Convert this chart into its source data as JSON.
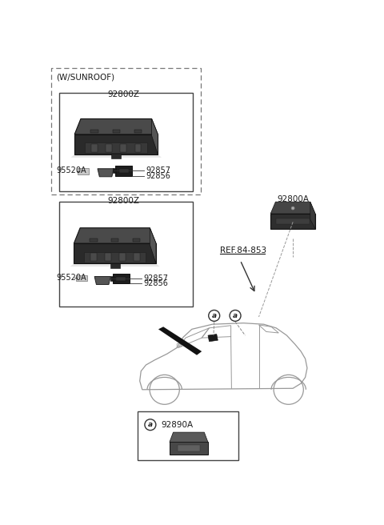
{
  "bg_color": "#ffffff",
  "fig_width": 4.8,
  "fig_height": 6.56,
  "dpi": 100,
  "parts": {
    "sunroof_label": "(W/SUNROOF)",
    "part_92800Z_1": "92800Z",
    "part_92800Z_2": "92800Z",
    "part_92800A": "92800A",
    "part_92857_1": "92857",
    "part_92856_1": "92856",
    "part_95520A_1": "95520A",
    "part_92857_2": "92857",
    "part_92856_2": "92856",
    "part_95520A_2": "95520A",
    "part_92890A": "92890A",
    "ref_label": "REF.84-853"
  },
  "colors": {
    "box_border": "#444444",
    "dashed_border": "#777777",
    "text": "#1a1a1a",
    "car_outline": "#999999",
    "line": "#333333",
    "lamp_dark": "#2a2a2a",
    "lamp_mid": "#3d3d3d",
    "lamp_light": "#555555",
    "lamp_top": "#4a4a4a",
    "connector_dark": "#1e1e1e",
    "connector_grey": "#7a7a7a",
    "connector_white": "#c8c8c8"
  }
}
